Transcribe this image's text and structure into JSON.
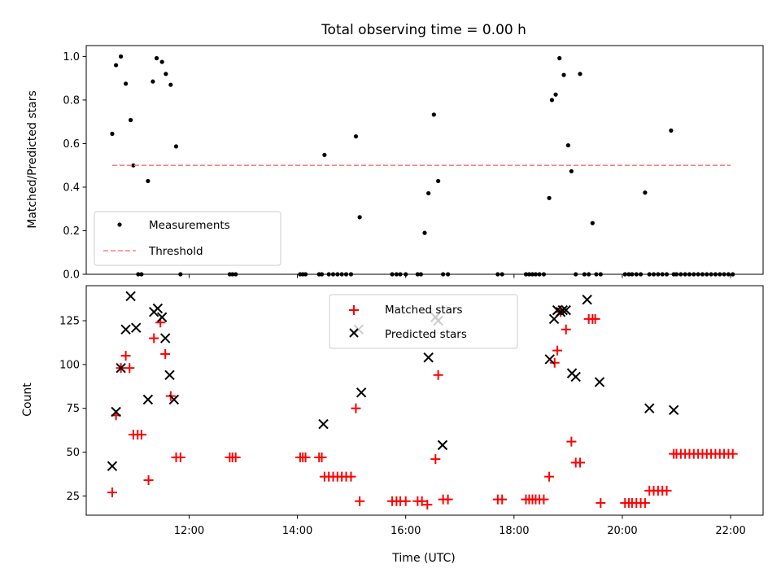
{
  "chart_data": [
    {
      "type": "scatter",
      "title": "Total observing time = 0.00 h",
      "xlabel": "",
      "ylabel": "Matched/Predicted stars",
      "xlim": [
        10.1,
        22.6
      ],
      "ylim": [
        0.0,
        1.05
      ],
      "xticks": [
        12,
        14,
        16,
        18,
        20,
        22
      ],
      "yticks": [
        0.0,
        0.2,
        0.4,
        0.6,
        0.8,
        1.0
      ],
      "ytick_labels": [
        "0.0",
        "0.2",
        "0.4",
        "0.6",
        "0.8",
        "1.0"
      ],
      "grid": false,
      "legend_position": "lower-left",
      "series": [
        {
          "name": "Measurements",
          "style": "dot",
          "color": "#000000",
          "x": [
            10.58,
            10.65,
            10.74,
            10.83,
            10.92,
            10.97,
            11.06,
            11.12,
            11.24,
            11.33,
            11.4,
            11.5,
            11.57,
            11.66,
            11.76,
            11.84,
            12.75,
            12.8,
            12.86,
            14.05,
            14.1,
            14.15,
            14.4,
            14.45,
            14.5,
            14.58,
            14.66,
            14.74,
            14.82,
            14.9,
            14.99,
            15.08,
            15.15,
            15.75,
            15.83,
            15.9,
            16.0,
            16.22,
            16.28,
            16.35,
            16.42,
            16.52,
            16.6,
            16.69,
            16.78,
            17.7,
            17.78,
            18.22,
            18.28,
            18.34,
            18.4,
            18.47,
            18.55,
            18.65,
            18.7,
            18.77,
            18.84,
            18.92,
            19.0,
            19.06,
            19.14,
            19.22,
            19.3,
            19.38,
            19.45,
            19.52,
            19.6,
            20.05,
            20.12,
            20.18,
            20.26,
            20.34,
            20.42,
            20.5,
            20.58,
            20.66,
            20.74,
            20.82,
            20.9,
            20.95,
            21.0,
            21.08,
            21.16,
            21.24,
            21.32,
            21.4,
            21.48,
            21.56,
            21.64,
            21.72,
            21.8,
            21.88,
            21.96,
            22.04
          ],
          "y": [
            0.645,
            0.96,
            1.0,
            0.875,
            0.708,
            0.5,
            0.0,
            0.0,
            0.428,
            0.885,
            0.992,
            0.975,
            0.92,
            0.87,
            0.587,
            0.0,
            0.0,
            0.0,
            0.0,
            0.0,
            0.0,
            0.0,
            0.0,
            0.0,
            0.548,
            0.0,
            0.0,
            0.0,
            0.0,
            0.0,
            0.0,
            0.633,
            0.262,
            0.0,
            0.0,
            0.0,
            0.0,
            0.0,
            0.0,
            0.19,
            0.372,
            0.733,
            0.428,
            0.0,
            0.0,
            0.0,
            0.0,
            0.0,
            0.0,
            0.0,
            0.0,
            0.0,
            0.0,
            0.35,
            0.8,
            0.825,
            0.992,
            0.915,
            0.592,
            0.473,
            0.0,
            0.92,
            0.0,
            0.0,
            0.235,
            0.0,
            0.0,
            0.0,
            0.0,
            0.0,
            0.0,
            0.0,
            0.375,
            0.0,
            0.0,
            0.0,
            0.0,
            0.0,
            0.66,
            0.0,
            0.0,
            0.0,
            0.0,
            0.0,
            0.0,
            0.0,
            0.0,
            0.0,
            0.0,
            0.0,
            0.0,
            0.0,
            0.0,
            0.0
          ]
        },
        {
          "name": "Threshold",
          "style": "dashed-line",
          "color": "#ff7f7f",
          "x": [
            10.58,
            22.0
          ],
          "y": [
            0.5,
            0.5
          ]
        }
      ]
    },
    {
      "type": "scatter",
      "title": "",
      "xlabel": "Time (UTC)",
      "ylabel": "Count",
      "xlim": [
        10.1,
        22.6
      ],
      "ylim": [
        14,
        145
      ],
      "xticks": [
        12,
        14,
        16,
        18,
        20,
        22
      ],
      "xtick_labels": [
        "12:00",
        "14:00",
        "16:00",
        "18:00",
        "20:00",
        "22:00"
      ],
      "yticks": [
        25,
        50,
        75,
        100,
        125
      ],
      "ytick_labels": [
        "25",
        "50",
        "75",
        "100",
        "125"
      ],
      "grid": false,
      "legend_position": "upper-center",
      "series": [
        {
          "name": "Matched stars",
          "style": "plus",
          "color": "#ff0000",
          "x": [
            10.58,
            10.65,
            10.74,
            10.83,
            10.9,
            10.97,
            11.05,
            11.12,
            11.25,
            11.35,
            11.47,
            11.56,
            11.66,
            11.76,
            11.84,
            12.75,
            12.8,
            12.86,
            14.05,
            14.1,
            14.15,
            14.4,
            14.45,
            14.5,
            14.58,
            14.66,
            14.74,
            14.82,
            14.9,
            14.99,
            15.08,
            15.15,
            15.75,
            15.83,
            15.9,
            16.0,
            16.22,
            16.3,
            16.4,
            16.55,
            16.6,
            16.69,
            16.78,
            17.7,
            17.78,
            18.22,
            18.28,
            18.34,
            18.4,
            18.47,
            18.55,
            18.65,
            18.75,
            18.8,
            18.86,
            18.96,
            19.06,
            19.14,
            19.22,
            19.38,
            19.45,
            19.5,
            19.6,
            20.05,
            20.12,
            20.18,
            20.26,
            20.34,
            20.42,
            20.5,
            20.58,
            20.66,
            20.74,
            20.82,
            20.95,
            21.0,
            21.08,
            21.16,
            21.24,
            21.32,
            21.4,
            21.48,
            21.56,
            21.64,
            21.72,
            21.8,
            21.88,
            21.96,
            22.04
          ],
          "y": [
            27,
            71,
            98,
            105,
            98,
            60,
            60,
            60,
            34,
            115,
            124,
            106,
            82,
            47,
            47,
            47,
            47,
            47,
            47,
            47,
            47,
            47,
            47,
            36,
            36,
            36,
            36,
            36,
            36,
            36,
            75,
            22,
            22,
            22,
            22,
            22,
            22,
            22,
            20,
            46,
            94,
            23,
            23,
            23,
            23,
            23,
            23,
            23,
            23,
            23,
            23,
            36,
            101,
            108,
            130,
            120,
            56,
            44,
            44,
            126,
            126,
            126,
            21,
            21,
            21,
            21,
            21,
            21,
            21,
            28,
            28,
            28,
            28,
            28,
            49,
            49,
            49,
            49,
            49,
            49,
            49,
            49,
            49,
            49,
            49,
            49,
            49,
            49,
            49
          ]
        },
        {
          "name": "Predicted stars",
          "style": "x",
          "color": "#000000",
          "x": [
            10.58,
            10.65,
            10.74,
            10.83,
            10.92,
            11.02,
            11.24,
            11.35,
            11.42,
            11.5,
            11.56,
            11.64,
            11.72,
            14.48,
            15.13,
            15.18,
            16.42,
            16.55,
            16.6,
            16.68,
            18.66,
            18.74,
            18.8,
            18.86,
            18.9,
            18.96,
            19.07,
            19.14,
            19.35,
            19.58,
            20.5,
            20.95
          ],
          "y": [
            42,
            73,
            98,
            120,
            139,
            121,
            80,
            130,
            132,
            127,
            115,
            94,
            80,
            66,
            120,
            84,
            104,
            127,
            125,
            54,
            103,
            126,
            131,
            130,
            131,
            131,
            95,
            93,
            137,
            90,
            75,
            74
          ]
        }
      ]
    }
  ]
}
